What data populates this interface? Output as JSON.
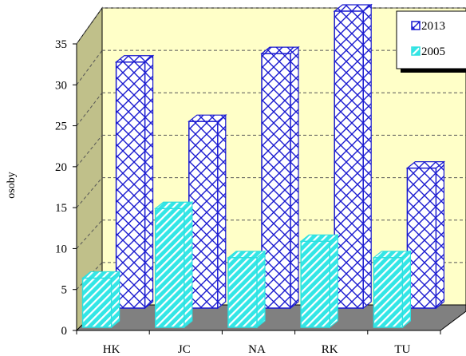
{
  "chart_data": {
    "type": "bar",
    "categories": [
      "HK",
      "JC",
      "NA",
      "RK",
      "TU"
    ],
    "series": [
      {
        "name": "2013",
        "values": [
          29,
          22,
          30,
          35,
          16.5
        ],
        "color": "#1a1ad0",
        "pattern": "crosshatch"
      },
      {
        "name": "2005",
        "values": [
          6,
          14.5,
          8.5,
          10.5,
          8.5
        ],
        "color": "#2de0e0",
        "pattern": "diagonal"
      }
    ],
    "ylabel": "osoby",
    "xlabel": "",
    "ylim": [
      0,
      35
    ],
    "yticks": [
      0,
      5,
      10,
      15,
      20,
      25,
      30,
      35
    ],
    "grid": true,
    "legend_position": "top-right",
    "style": "3d",
    "wall_color": "#ffffc8",
    "floor_color": "#808080"
  }
}
